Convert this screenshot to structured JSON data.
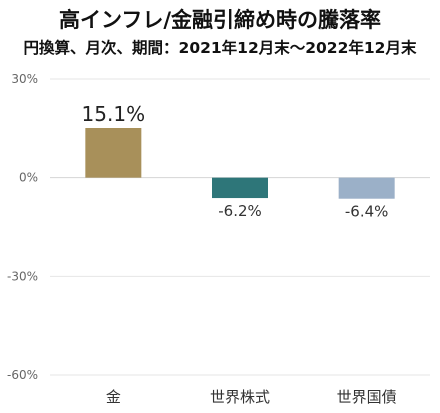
{
  "chart_data": {
    "type": "bar",
    "title": "高インフレ/金融引締め時の騰落率",
    "subtitle": "円換算、月次、期間：2021年12月末〜2022年12月末",
    "categories": [
      "金",
      "世界株式",
      "世界国債"
    ],
    "values": [
      15.1,
      -6.2,
      -6.4
    ],
    "value_labels": [
      "15.1%",
      "-6.2%",
      "-6.4%"
    ],
    "colors": [
      "#A8905A",
      "#2E7679",
      "#9BB0C8"
    ],
    "ylim": [
      -60,
      30
    ],
    "yticks": [
      30,
      0,
      -30,
      -60
    ],
    "ytick_labels": [
      "30%",
      "0%",
      "-30%",
      "-60%"
    ],
    "xlabel": "",
    "ylabel": "",
    "grid": true,
    "legend": "none"
  }
}
